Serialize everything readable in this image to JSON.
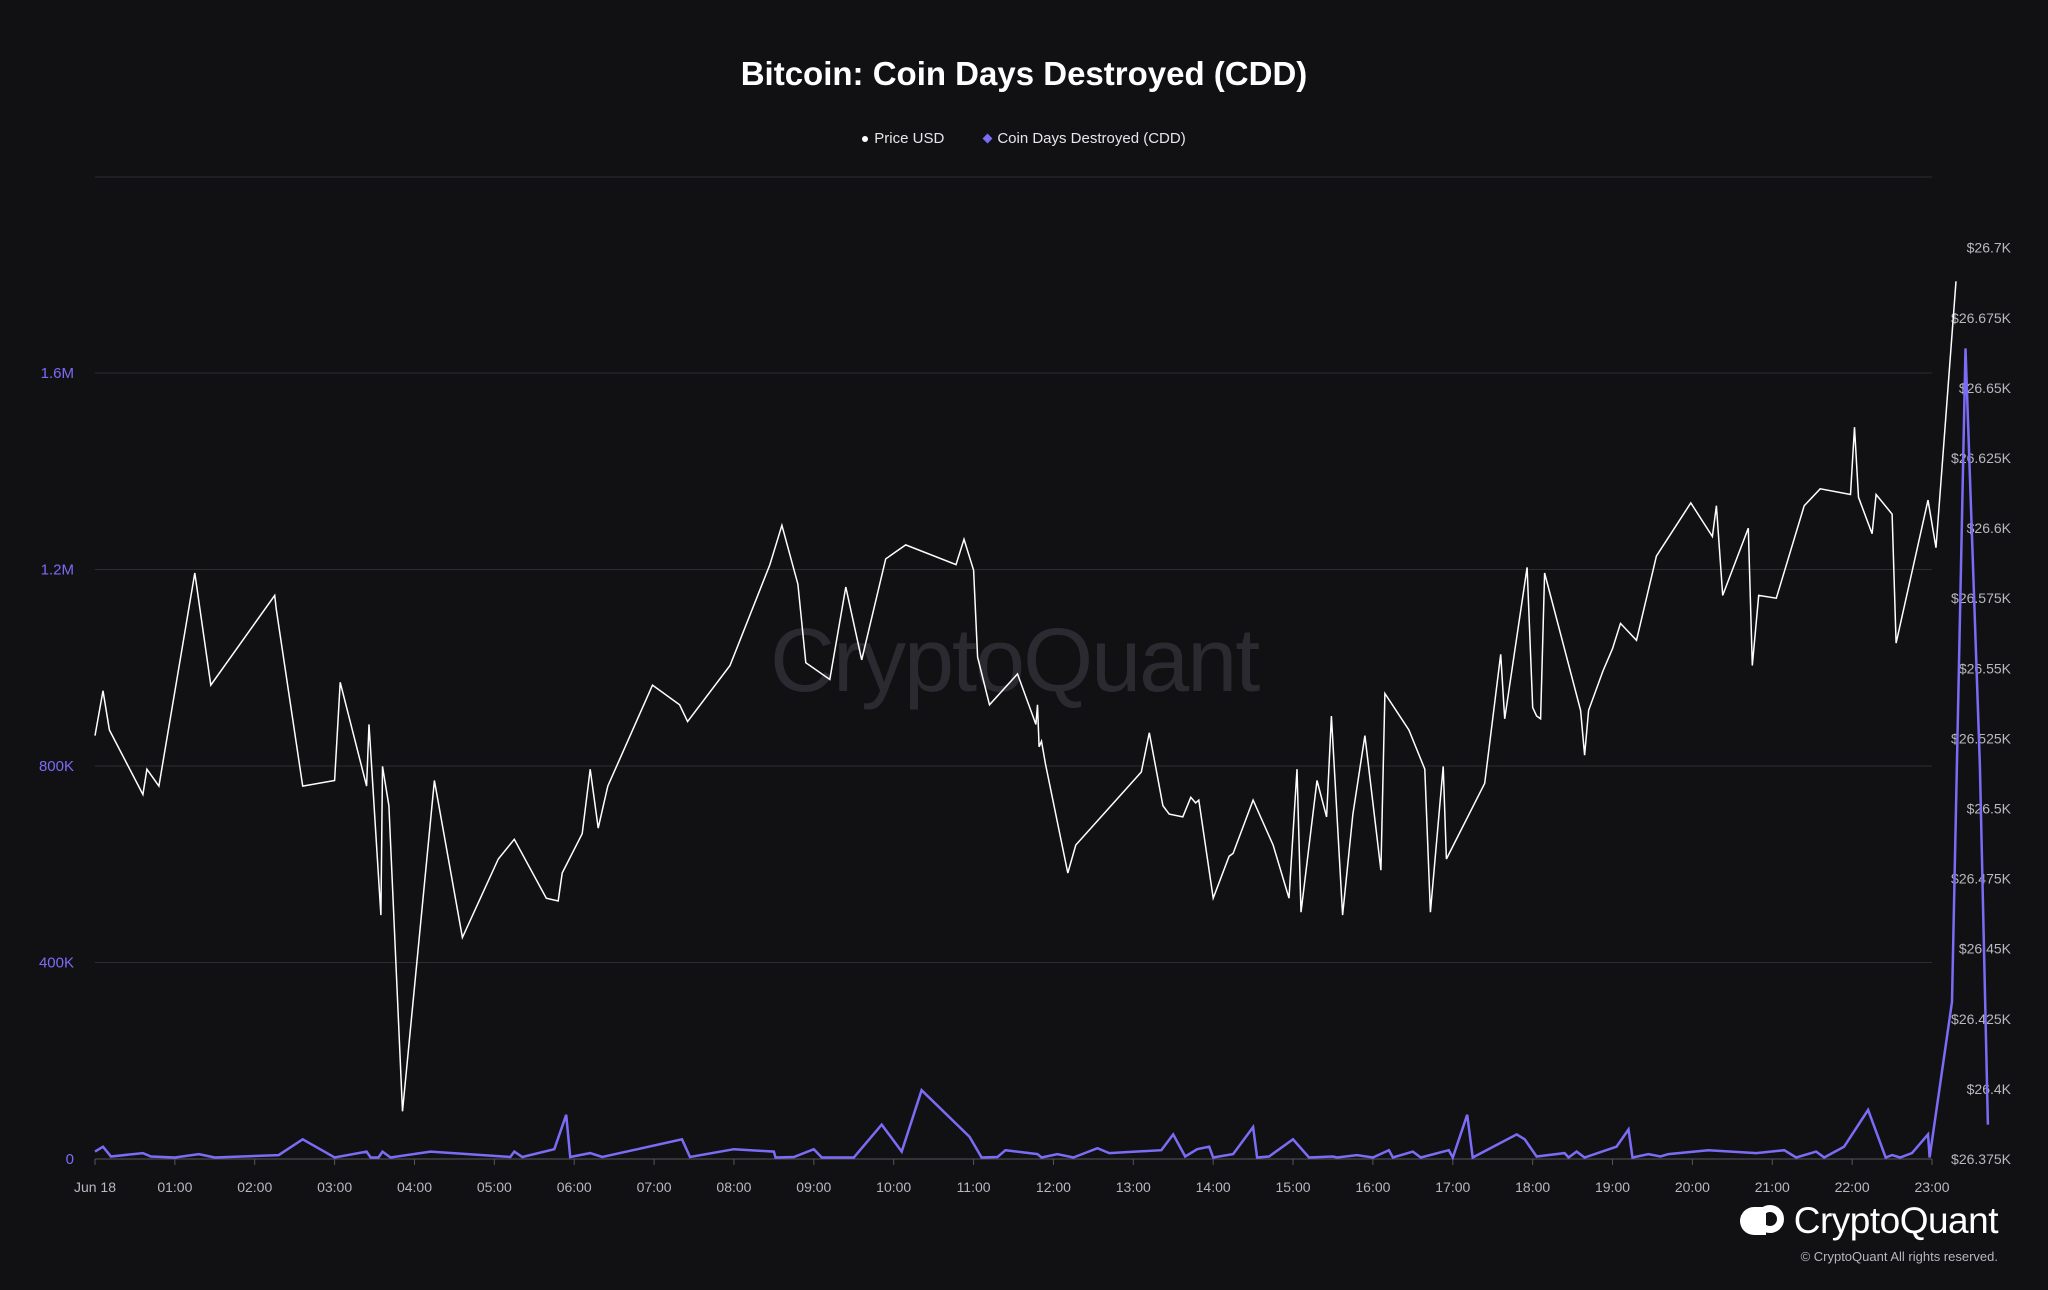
{
  "header": {
    "title": "Bitcoin: Coin Days Destroyed (CDD)"
  },
  "legend": {
    "price_label": "Price USD",
    "cdd_label": "Coin Days Destroyed (CDD)"
  },
  "watermark": "CryptoQuant",
  "brand": {
    "name": "CryptoQuant",
    "copyright": "© CryptoQuant All rights reserved."
  },
  "colors": {
    "background": "#111114",
    "price_line": "#ffffff",
    "cdd_line": "#7b6cf6",
    "grid": "#2c2c32",
    "left_axis_text": "#7b6cf6",
    "axis_text": "#b8b8c0"
  },
  "chart_data": {
    "type": "line",
    "title": "Bitcoin: Coin Days Destroyed (CDD)",
    "x_tick_labels": [
      "Jun 18",
      "01:00",
      "02:00",
      "03:00",
      "04:00",
      "05:00",
      "06:00",
      "07:00",
      "08:00",
      "09:00",
      "10:00",
      "11:00",
      "12:00",
      "13:00",
      "14:00",
      "15:00",
      "16:00",
      "17:00",
      "18:00",
      "19:00",
      "20:00",
      "21:00",
      "22:00",
      "23:00"
    ],
    "x_unit": "hours since Jun 18 00:00",
    "xlim": [
      0,
      23
    ],
    "left_axis": {
      "ticks": [
        "0",
        "400K",
        "800K",
        "1.2M",
        "1.6M"
      ],
      "ylim": [
        0,
        2000000
      ]
    },
    "right_axis": {
      "ticks": [
        "$26.375K",
        "$26.4K",
        "$26.425K",
        "$26.45K",
        "$26.475K",
        "$26.5K",
        "$26.525K",
        "$26.55K",
        "$26.575K",
        "$26.6K",
        "$26.625K",
        "$26.65K",
        "$26.675K",
        "$26.7K"
      ],
      "ylim": [
        26375,
        26700
      ]
    },
    "grid": true,
    "legend_position": "top-center",
    "series": [
      {
        "name": "Price USD",
        "axis": "right",
        "points": [
          [
            0.0,
            26526
          ],
          [
            0.1,
            26542
          ],
          [
            0.18,
            26528
          ],
          [
            0.6,
            26505
          ],
          [
            0.65,
            26514
          ],
          [
            0.8,
            26508
          ],
          [
            1.25,
            26584
          ],
          [
            1.45,
            26544
          ],
          [
            2.25,
            26576
          ],
          [
            2.27,
            26571
          ],
          [
            2.6,
            26508
          ],
          [
            3.0,
            26510
          ],
          [
            3.07,
            26545
          ],
          [
            3.4,
            26508
          ],
          [
            3.43,
            26530
          ],
          [
            3.58,
            26462
          ],
          [
            3.6,
            26515
          ],
          [
            3.68,
            26501
          ],
          [
            3.85,
            26392
          ],
          [
            4.25,
            26510
          ],
          [
            4.6,
            26454
          ],
          [
            5.05,
            26482
          ],
          [
            5.25,
            26489
          ],
          [
            5.65,
            26468
          ],
          [
            5.8,
            26467
          ],
          [
            5.85,
            26477
          ],
          [
            6.1,
            26491
          ],
          [
            6.2,
            26514
          ],
          [
            6.3,
            26493
          ],
          [
            6.42,
            26508
          ],
          [
            6.98,
            26544
          ],
          [
            7.32,
            26537
          ],
          [
            7.42,
            26531
          ],
          [
            7.95,
            26551
          ],
          [
            8.45,
            26587
          ],
          [
            8.6,
            26601
          ],
          [
            8.8,
            26580
          ],
          [
            8.9,
            26552
          ],
          [
            9.2,
            26546
          ],
          [
            9.4,
            26579
          ],
          [
            9.6,
            26553
          ],
          [
            9.9,
            26589
          ],
          [
            10.15,
            26594
          ],
          [
            10.78,
            26587
          ],
          [
            10.88,
            26596
          ],
          [
            11.0,
            26585
          ],
          [
            11.05,
            26554
          ],
          [
            11.2,
            26537
          ],
          [
            11.55,
            26548
          ],
          [
            11.78,
            26530
          ],
          [
            11.8,
            26537
          ],
          [
            11.82,
            26522
          ],
          [
            11.85,
            26524
          ],
          [
            11.9,
            26516
          ],
          [
            12.18,
            26477
          ],
          [
            12.28,
            26487
          ],
          [
            13.1,
            26513
          ],
          [
            13.2,
            26527
          ],
          [
            13.37,
            26501
          ],
          [
            13.45,
            26498
          ],
          [
            13.62,
            26497
          ],
          [
            13.72,
            26504
          ],
          [
            13.78,
            26502
          ],
          [
            13.82,
            26503
          ],
          [
            14.0,
            26468
          ],
          [
            14.2,
            26483
          ],
          [
            14.25,
            26484
          ],
          [
            14.5,
            26503
          ],
          [
            14.75,
            26487
          ],
          [
            14.95,
            26468
          ],
          [
            15.05,
            26514
          ],
          [
            15.1,
            26463
          ],
          [
            15.3,
            26510
          ],
          [
            15.42,
            26497
          ],
          [
            15.48,
            26533
          ],
          [
            15.62,
            26462
          ],
          [
            15.75,
            26498
          ],
          [
            15.9,
            26526
          ],
          [
            16.1,
            26478
          ],
          [
            16.15,
            26541
          ],
          [
            16.45,
            26528
          ],
          [
            16.65,
            26514
          ],
          [
            16.72,
            26463
          ],
          [
            16.88,
            26515
          ],
          [
            16.92,
            26482
          ],
          [
            17.4,
            26509
          ],
          [
            17.6,
            26555
          ],
          [
            17.65,
            26532
          ],
          [
            17.93,
            26586
          ],
          [
            18.0,
            26536
          ],
          [
            18.05,
            26533
          ],
          [
            18.1,
            26532
          ],
          [
            18.15,
            26584
          ],
          [
            18.6,
            26535
          ],
          [
            18.65,
            26519
          ],
          [
            18.7,
            26535
          ],
          [
            18.88,
            26549
          ],
          [
            19.0,
            26557
          ],
          [
            19.1,
            26566
          ],
          [
            19.3,
            26560
          ],
          [
            19.55,
            26590
          ],
          [
            19.98,
            26609
          ],
          [
            20.25,
            26597
          ],
          [
            20.3,
            26608
          ],
          [
            20.38,
            26576
          ],
          [
            20.7,
            26600
          ],
          [
            20.75,
            26551
          ],
          [
            20.83,
            26576
          ],
          [
            21.05,
            26575
          ],
          [
            21.4,
            26608
          ],
          [
            21.6,
            26614
          ],
          [
            21.98,
            26612
          ],
          [
            22.03,
            26636
          ],
          [
            22.08,
            26611
          ],
          [
            22.25,
            26598
          ],
          [
            22.3,
            26612
          ],
          [
            22.5,
            26605
          ],
          [
            22.55,
            26559
          ],
          [
            22.95,
            26610
          ],
          [
            23.05,
            26593
          ],
          [
            23.3,
            26688
          ]
        ]
      },
      {
        "name": "Coin Days Destroyed (CDD)",
        "axis": "left",
        "points": [
          [
            0.0,
            15000
          ],
          [
            0.1,
            25000
          ],
          [
            0.2,
            5000
          ],
          [
            0.6,
            12000
          ],
          [
            0.7,
            5000
          ],
          [
            1.0,
            3000
          ],
          [
            1.3,
            10000
          ],
          [
            1.5,
            3000
          ],
          [
            2.3,
            8000
          ],
          [
            2.6,
            40000
          ],
          [
            3.0,
            3000
          ],
          [
            3.4,
            15000
          ],
          [
            3.45,
            3000
          ],
          [
            3.55,
            3000
          ],
          [
            3.6,
            15000
          ],
          [
            3.7,
            3000
          ],
          [
            4.2,
            15000
          ],
          [
            5.2,
            4000
          ],
          [
            5.25,
            15000
          ],
          [
            5.35,
            4000
          ],
          [
            5.75,
            20000
          ],
          [
            5.9,
            90000
          ],
          [
            5.95,
            4000
          ],
          [
            6.2,
            12000
          ],
          [
            6.35,
            4000
          ],
          [
            7.35,
            40000
          ],
          [
            7.45,
            4000
          ],
          [
            8.0,
            20000
          ],
          [
            8.5,
            15000
          ],
          [
            8.52,
            3000
          ],
          [
            8.75,
            4000
          ],
          [
            9.0,
            20000
          ],
          [
            9.1,
            3000
          ],
          [
            9.5,
            3000
          ],
          [
            9.85,
            70000
          ],
          [
            10.1,
            15000
          ],
          [
            10.35,
            140000
          ],
          [
            10.95,
            45000
          ],
          [
            11.1,
            3000
          ],
          [
            11.3,
            4000
          ],
          [
            11.4,
            18000
          ],
          [
            11.8,
            10000
          ],
          [
            11.85,
            3000
          ],
          [
            12.05,
            10000
          ],
          [
            12.25,
            3000
          ],
          [
            12.55,
            22000
          ],
          [
            12.7,
            12000
          ],
          [
            13.35,
            18000
          ],
          [
            13.5,
            50000
          ],
          [
            13.65,
            5000
          ],
          [
            13.8,
            20000
          ],
          [
            13.95,
            25000
          ],
          [
            14.0,
            3000
          ],
          [
            14.25,
            10000
          ],
          [
            14.5,
            65000
          ],
          [
            14.55,
            3000
          ],
          [
            14.7,
            5000
          ],
          [
            15.0,
            40000
          ],
          [
            15.2,
            3000
          ],
          [
            15.5,
            5000
          ],
          [
            15.55,
            3000
          ],
          [
            15.8,
            8000
          ],
          [
            16.0,
            3000
          ],
          [
            16.2,
            18000
          ],
          [
            16.25,
            3000
          ],
          [
            16.5,
            15000
          ],
          [
            16.6,
            3000
          ],
          [
            16.95,
            18000
          ],
          [
            17.0,
            3000
          ],
          [
            17.18,
            90000
          ],
          [
            17.25,
            3000
          ],
          [
            17.8,
            50000
          ],
          [
            17.9,
            40000
          ],
          [
            18.05,
            5000
          ],
          [
            18.4,
            12000
          ],
          [
            18.45,
            3000
          ],
          [
            18.55,
            15000
          ],
          [
            18.65,
            3000
          ],
          [
            19.05,
            25000
          ],
          [
            19.2,
            60000
          ],
          [
            19.25,
            3000
          ],
          [
            19.45,
            10000
          ],
          [
            19.6,
            5000
          ],
          [
            19.7,
            10000
          ],
          [
            20.2,
            18000
          ],
          [
            20.8,
            12000
          ],
          [
            21.15,
            18000
          ],
          [
            21.3,
            3000
          ],
          [
            21.55,
            15000
          ],
          [
            21.65,
            3000
          ],
          [
            21.9,
            25000
          ],
          [
            22.2,
            100000
          ],
          [
            22.42,
            3000
          ],
          [
            22.5,
            8000
          ],
          [
            22.6,
            3000
          ],
          [
            22.75,
            12000
          ],
          [
            22.95,
            50000
          ],
          [
            22.97,
            3000
          ],
          [
            23.25,
            320000
          ],
          [
            23.42,
            1650000
          ],
          [
            23.6,
            800000
          ],
          [
            23.7,
            70000
          ]
        ]
      }
    ]
  }
}
